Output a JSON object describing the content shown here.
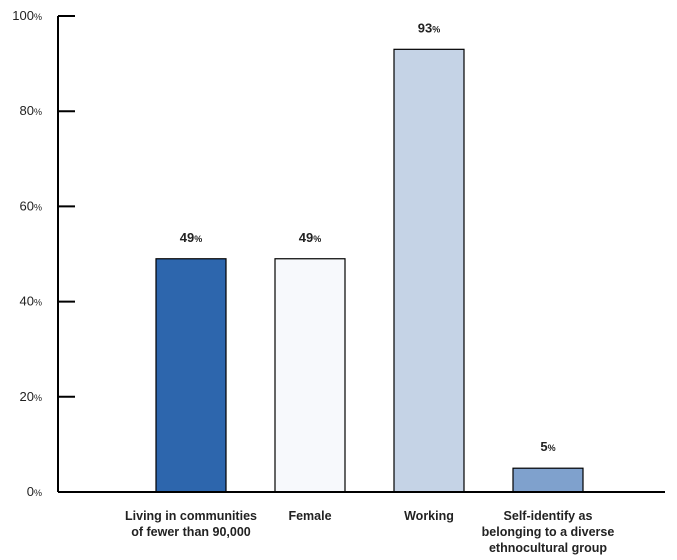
{
  "chart_data": {
    "type": "bar",
    "categories": [
      [
        "Living in communities",
        "of fewer than 90,000"
      ],
      [
        "Female"
      ],
      [
        "Working"
      ],
      [
        "Self-identify as",
        "belonging to a diverse",
        "ethnocultural group"
      ]
    ],
    "values": [
      49,
      49,
      93,
      5
    ],
    "value_suffix": "%",
    "bar_colors": [
      "#2d66ad",
      "#f7f9fc",
      "#c5d3e6",
      "#7fa1cd"
    ],
    "ylim": [
      0,
      100
    ],
    "yticks": [
      0,
      20,
      40,
      60,
      80,
      100
    ],
    "grid": false,
    "legend": "none"
  }
}
